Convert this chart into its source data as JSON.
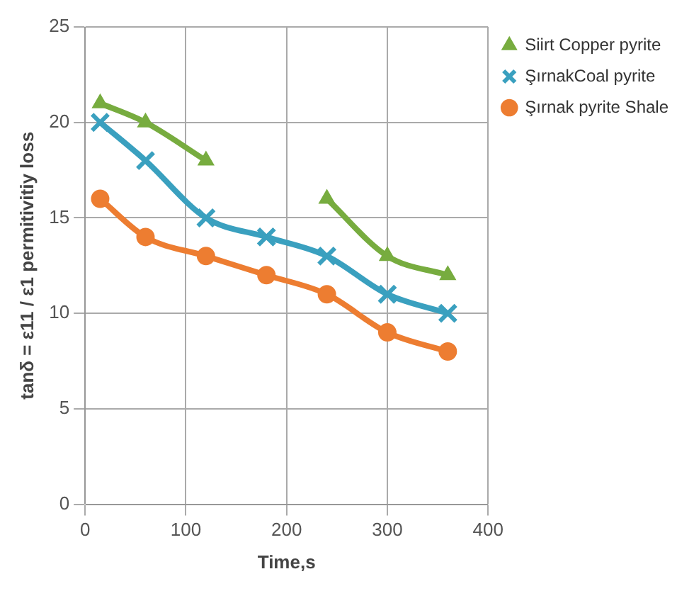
{
  "chart_data": {
    "type": "line",
    "xlabel": "Time,s",
    "ylabel": "tanδ = ε11 / ε1 permitivitiy loss",
    "x": [
      15,
      60,
      120,
      180,
      240,
      300,
      360
    ],
    "series": [
      {
        "name": "Siirt Copper pyrite",
        "color": "#77ac3f",
        "marker": "triangle",
        "values": [
          21,
          20,
          18,
          null,
          16,
          13,
          12
        ]
      },
      {
        "name": "ŞırnakCoal pyrite",
        "color": "#3aa0bf",
        "marker": "cross",
        "values": [
          20,
          18,
          15,
          14,
          13,
          11,
          10
        ]
      },
      {
        "name": "Şırnak pyrite Shale",
        "color": "#ed7d31",
        "marker": "circle",
        "values": [
          16,
          14,
          13,
          12,
          11,
          9,
          8
        ]
      }
    ],
    "xlim": [
      0,
      400
    ],
    "xticks": [
      0,
      100,
      200,
      300,
      400
    ],
    "ylim": [
      0,
      25
    ],
    "yticks": [
      0,
      5,
      10,
      15,
      20,
      25
    ],
    "grid": true,
    "legend": "top right",
    "line_style": "solid"
  }
}
